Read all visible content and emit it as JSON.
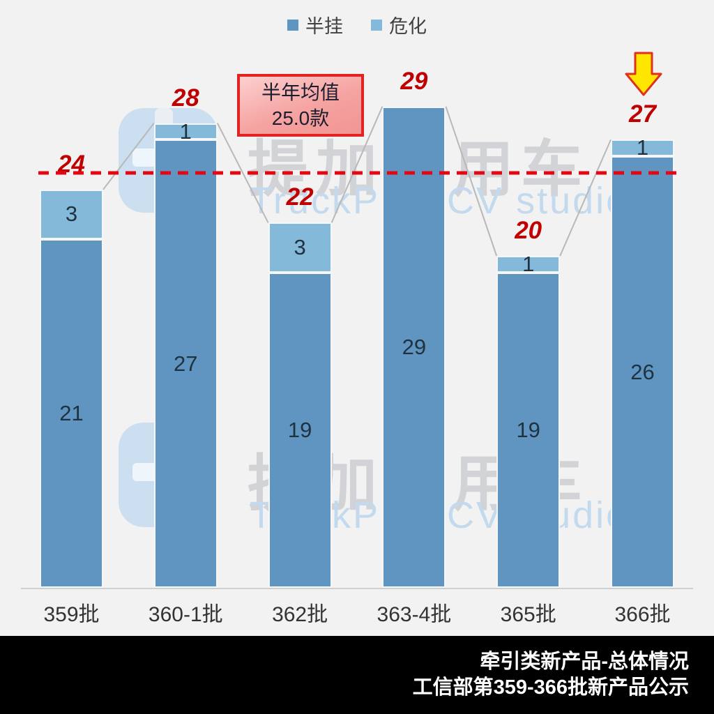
{
  "legend": {
    "items": [
      {
        "label": "半挂",
        "color": "#6094c1"
      },
      {
        "label": "危化",
        "color": "#85b9d9"
      }
    ]
  },
  "chart_data": {
    "type": "bar",
    "stacked": true,
    "categories": [
      "359批",
      "360-1批",
      "362批",
      "363-4批",
      "365批",
      "366批"
    ],
    "series": [
      {
        "name": "半挂",
        "color": "#6094c1",
        "values": [
          21,
          27,
          19,
          29,
          19,
          26
        ]
      },
      {
        "name": "危化",
        "color": "#85b9d9",
        "values": [
          3,
          1,
          3,
          0,
          1,
          1
        ]
      }
    ],
    "totals": [
      24,
      28,
      22,
      29,
      20,
      27
    ],
    "average_line": {
      "value": 25.0,
      "color": "#e30613",
      "style": "dashed"
    },
    "highlight": {
      "category": "366批",
      "marker": "down-arrow"
    },
    "ylim": [
      0,
      29
    ],
    "grid": false,
    "legend_position": "top-center"
  },
  "annotation_box": {
    "line1": "半年均值",
    "line2": "25.0款"
  },
  "watermark": {
    "cn": "提加商用车",
    "en": "TruckPlus CV studio"
  },
  "footer": {
    "line1": "牵引类新产品-总体情况",
    "line2": "工信部第359-366批新产品公示"
  },
  "colors": {
    "background": "#f2f2f2",
    "bar_dark": "#6094c1",
    "bar_light": "#85b9d9",
    "total_text": "#c00000",
    "avg_line": "#e30613",
    "connector": "#b8b8b8",
    "axis": "#cfcfcf",
    "footer_bg": "#000000",
    "footer_text": "#ffffff",
    "arrow_fill": "#ffe600",
    "arrow_stroke": "#e0301e"
  }
}
